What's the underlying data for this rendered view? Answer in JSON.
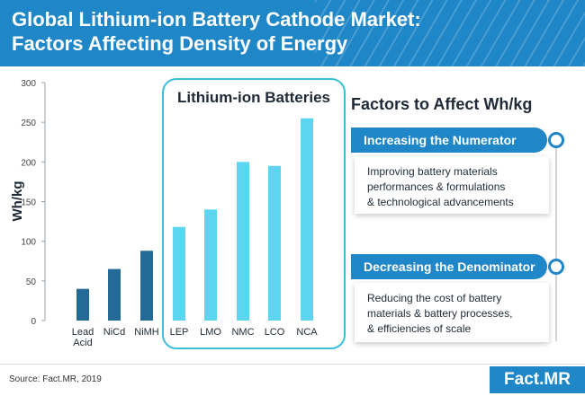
{
  "header": {
    "title_line1": "Global Lithium-ion Battery Cathode Market:",
    "title_line2": "Factors Affecting Density of Energy"
  },
  "chart_data": {
    "type": "bar",
    "categories": [
      "Lead Acid",
      "NiCd",
      "NiMH",
      "LEP",
      "LMO",
      "NMC",
      "LCO",
      "NCA"
    ],
    "values": [
      40,
      65,
      88,
      118,
      140,
      200,
      195,
      255
    ],
    "colors": [
      "#236a96",
      "#236a96",
      "#236a96",
      "#5bd5f0",
      "#5bd5f0",
      "#5bd5f0",
      "#5bd5f0",
      "#5bd5f0"
    ],
    "ylabel": "Wh/kg",
    "ylim": [
      0,
      300
    ],
    "yticks": [
      0,
      50,
      100,
      150,
      200,
      250,
      300
    ],
    "group_label": "Lithium-ion Batteries"
  },
  "factors": {
    "title": "Factors to Affect Wh/kg",
    "items": [
      {
        "label": "Increasing the Numerator",
        "text": [
          "Improving battery materials",
          "performances & formulations",
          "& technological advancements"
        ]
      },
      {
        "label": "Decreasing the Denominator",
        "text": [
          "Reducing the cost of battery",
          "materials & battery processes,",
          "& efficiencies of scale"
        ]
      }
    ]
  },
  "footer": {
    "source": "Source: Fact.MR, 2019",
    "brand": "Fact.MR"
  }
}
